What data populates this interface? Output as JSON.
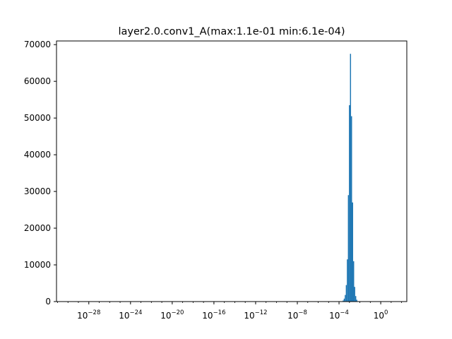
{
  "chart_data": {
    "type": "bar",
    "title": "layer2.0.conv1_A(max:1.1e-01 min:6.1e-04)",
    "xlabel": "",
    "ylabel": "",
    "xscale": "log",
    "xlim_exponent": [
      -31.1,
      2.5
    ],
    "ylim": [
      0,
      71000
    ],
    "grid": false,
    "bar_color": "#1f77b4",
    "yticks": [
      {
        "value": 0,
        "label": "0"
      },
      {
        "value": 10000,
        "label": "10000"
      },
      {
        "value": 20000,
        "label": "20000"
      },
      {
        "value": 30000,
        "label": "30000"
      },
      {
        "value": 40000,
        "label": "40000"
      },
      {
        "value": 50000,
        "label": "50000"
      },
      {
        "value": 60000,
        "label": "60000"
      },
      {
        "value": 70000,
        "label": "70000"
      }
    ],
    "xticks": [
      {
        "exponent": -28,
        "base": "10",
        "power": "−28"
      },
      {
        "exponent": -24,
        "base": "10",
        "power": "−24"
      },
      {
        "exponent": -20,
        "base": "10",
        "power": "−20"
      },
      {
        "exponent": -16,
        "base": "10",
        "power": "−16"
      },
      {
        "exponent": -12,
        "base": "10",
        "power": "−12"
      },
      {
        "exponent": -8,
        "base": "10",
        "power": "−8"
      },
      {
        "exponent": -4,
        "base": "10",
        "power": "−4"
      },
      {
        "exponent": 0,
        "base": "10",
        "power": "0"
      }
    ],
    "bins": [
      {
        "exponent": -3.6,
        "count": 300
      },
      {
        "exponent": -3.5,
        "count": 800
      },
      {
        "exponent": -3.4,
        "count": 1800
      },
      {
        "exponent": -3.3,
        "count": 4500
      },
      {
        "exponent": -3.2,
        "count": 11500
      },
      {
        "exponent": -3.1,
        "count": 29000
      },
      {
        "exponent": -3.0,
        "count": 53500
      },
      {
        "exponent": -2.9,
        "count": 67500
      },
      {
        "exponent": -2.8,
        "count": 50500
      },
      {
        "exponent": -2.7,
        "count": 27000
      },
      {
        "exponent": -2.6,
        "count": 11000
      },
      {
        "exponent": -2.5,
        "count": 4000
      },
      {
        "exponent": -2.4,
        "count": 1500
      },
      {
        "exponent": -2.3,
        "count": 500
      },
      {
        "exponent": -2.2,
        "count": 100
      }
    ]
  }
}
